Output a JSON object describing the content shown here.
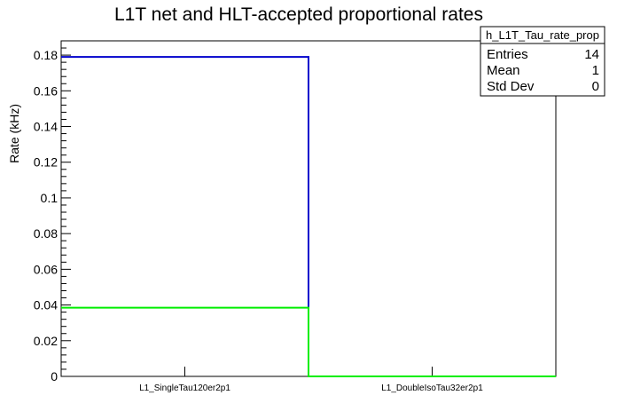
{
  "chart_data": {
    "type": "bar",
    "title": "L1T net and HLT-accepted proportional rates",
    "ylabel": "Rate (kHz)",
    "xlabel": "",
    "ylim": [
      0,
      0.188
    ],
    "categories": [
      "L1_SingleTau120er2p1",
      "L1_DoubleIsoTau32er2p1"
    ],
    "yticks": [
      "0",
      "0.02",
      "0.04",
      "0.06",
      "0.08",
      "0.1",
      "0.12",
      "0.14",
      "0.16",
      "0.18"
    ],
    "series": [
      {
        "values": [
          0.179,
          0.0
        ],
        "color": "#0000cc"
      },
      {
        "values": [
          0.0385,
          0.0
        ],
        "color": "#00ee00"
      }
    ],
    "grid": false
  },
  "stats": {
    "name": "h_L1T_Tau_rate_prop",
    "rows": [
      {
        "label": "Entries",
        "value": "14"
      },
      {
        "label": "Mean",
        "value": "1"
      },
      {
        "label": "Std Dev",
        "value": "0"
      }
    ]
  }
}
